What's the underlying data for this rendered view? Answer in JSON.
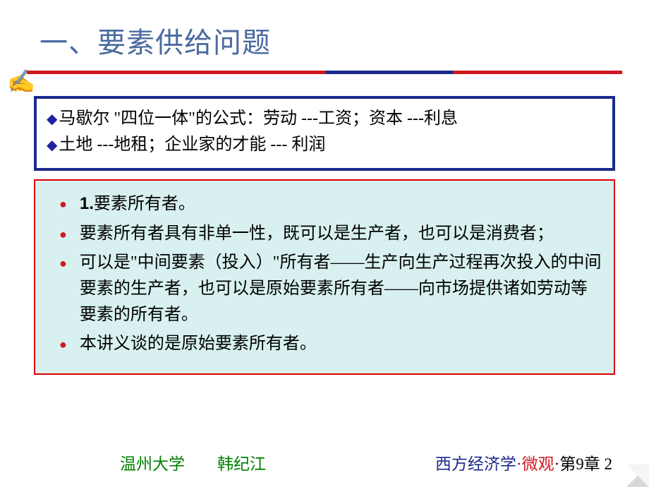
{
  "title": "一、要素供给问题",
  "penIcon": "✍",
  "blueBox": {
    "line1_prefix": "◆",
    "line1": "马歇尔 \"四位一体\"的公式：劳动 ---工资；资本 ---利息",
    "line2_prefix": "◆",
    "line2": "土地 ---地租；企业家的才能 --- 利润"
  },
  "redBox": {
    "items": [
      {
        "bold": "1.",
        "text": "要素所有者。"
      },
      {
        "text": "要素所有者具有非单一性，既可以是生产者，也可以是消费者；"
      },
      {
        "text": "可以是\"中间要素（投入）\"所有者——生产向生产过程再次投入的中间要素的生产者，也可以是原始要素所有者——向市场提供诸如劳动等要素的所有者。"
      },
      {
        "text": "本讲义谈的是原始要素所有者。"
      }
    ]
  },
  "footer": {
    "left": "温州大学　　韩纪江",
    "rightBlue": "西方经济学",
    "rightDot1": "·",
    "rightRed": "微观",
    "rightDot2": "·",
    "rightBlack": "第9章 2"
  },
  "colors": {
    "titleColor": "#4a6aa0",
    "dividerRed": "#d01820",
    "dividerBlue": "#1a2a8c",
    "blueBorder": "#1a2a8c",
    "redBorder": "#e00000",
    "redBoxBg": "#d8f0f0",
    "bulletRed": "#d01820",
    "footerGreen": "#008000"
  }
}
